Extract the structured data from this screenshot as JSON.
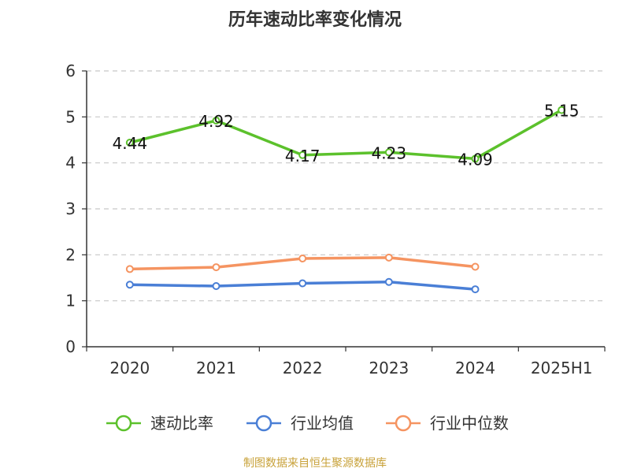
{
  "chart_data": {
    "type": "line",
    "title": "历年速动比率变化情况",
    "categories": [
      "2020",
      "2021",
      "2022",
      "2023",
      "2024",
      "2025H1"
    ],
    "ylim": [
      0,
      6
    ],
    "yticks": [
      0,
      1,
      2,
      3,
      4,
      5,
      6
    ],
    "grid": true,
    "legend_position": "bottom",
    "series": [
      {
        "name": "速动比率",
        "color": "#5cc12c",
        "values": [
          4.44,
          4.92,
          4.17,
          4.23,
          4.09,
          5.15
        ],
        "labels": [
          "4.44",
          "4.92",
          "4.17",
          "4.23",
          "4.09",
          "5.15"
        ]
      },
      {
        "name": "行业均值",
        "color": "#4a7fd6",
        "values": [
          1.35,
          1.32,
          1.38,
          1.41,
          1.25,
          null
        ]
      },
      {
        "name": "行业中位数",
        "color": "#f59461",
        "values": [
          1.69,
          1.73,
          1.92,
          1.94,
          1.74,
          null
        ]
      }
    ],
    "source": "制图数据来自恒生聚源数据库"
  }
}
